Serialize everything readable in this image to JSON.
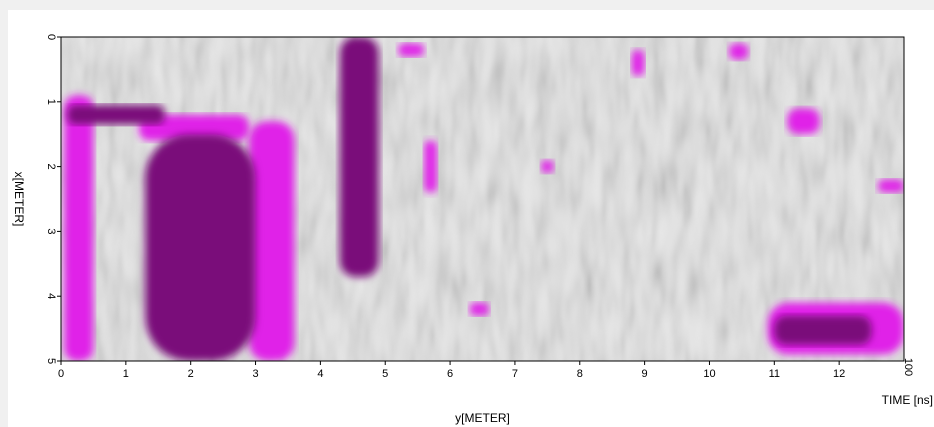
{
  "chart_data": {
    "type": "heatmap",
    "title": "",
    "xlabel": "y[METER]",
    "ylabel": "x[METER]",
    "time_label": "TIME [ns]",
    "time_value": "100",
    "xlim": [
      0,
      13
    ],
    "ylim": [
      0,
      5
    ],
    "x_ticks": [
      "0",
      "1",
      "2",
      "3",
      "4",
      "5",
      "6",
      "7",
      "8",
      "9",
      "10",
      "11",
      "12"
    ],
    "y_ticks": [
      "0",
      "1",
      "2",
      "3",
      "4",
      "5"
    ],
    "y_axis_inverted": true,
    "colors": {
      "background": "#e6e6e6",
      "light_gray": "#f4f4f4",
      "mid_gray": "#9a9a9a",
      "magenta": "#e020e8",
      "dark_purple": "#7a0a7a"
    },
    "regions": [
      {
        "level": "dark_purple",
        "x0": 4.3,
        "x1": 4.9,
        "y0": 0,
        "y1": 3.7
      },
      {
        "level": "dark_purple",
        "x0": 1.3,
        "x1": 3.0,
        "y0": 1.5,
        "y1": 5
      },
      {
        "level": "dark_purple",
        "x0": 0.1,
        "x1": 1.6,
        "y0": 1.05,
        "y1": 1.35
      },
      {
        "level": "dark_purple",
        "x0": 11.0,
        "x1": 12.5,
        "y0": 4.3,
        "y1": 4.75
      },
      {
        "level": "magenta",
        "x0": 0.05,
        "x1": 0.5,
        "y0": 0.9,
        "y1": 5
      },
      {
        "level": "magenta",
        "x0": 2.9,
        "x1": 3.6,
        "y0": 1.3,
        "y1": 5
      },
      {
        "level": "magenta",
        "x0": 1.2,
        "x1": 2.9,
        "y0": 1.2,
        "y1": 1.6
      },
      {
        "level": "magenta",
        "x0": 10.9,
        "x1": 13.0,
        "y0": 4.1,
        "y1": 4.9
      },
      {
        "level": "magenta",
        "x0": 11.2,
        "x1": 11.7,
        "y0": 1.1,
        "y1": 1.5
      },
      {
        "level": "magenta",
        "x0": 10.3,
        "x1": 10.6,
        "y0": 0.1,
        "y1": 0.35
      },
      {
        "level": "magenta",
        "x0": 5.6,
        "x1": 5.8,
        "y0": 1.6,
        "y1": 2.4
      },
      {
        "level": "magenta",
        "x0": 6.3,
        "x1": 6.6,
        "y0": 4.1,
        "y1": 4.3
      },
      {
        "level": "magenta",
        "x0": 8.8,
        "x1": 9.0,
        "y0": 0.2,
        "y1": 0.6
      },
      {
        "level": "magenta",
        "x0": 12.6,
        "x1": 13.0,
        "y0": 2.2,
        "y1": 2.4
      },
      {
        "level": "magenta",
        "x0": 7.4,
        "x1": 7.6,
        "y0": 1.9,
        "y1": 2.1
      },
      {
        "level": "magenta",
        "x0": 5.2,
        "x1": 5.6,
        "y0": 0.1,
        "y1": 0.3
      }
    ]
  }
}
